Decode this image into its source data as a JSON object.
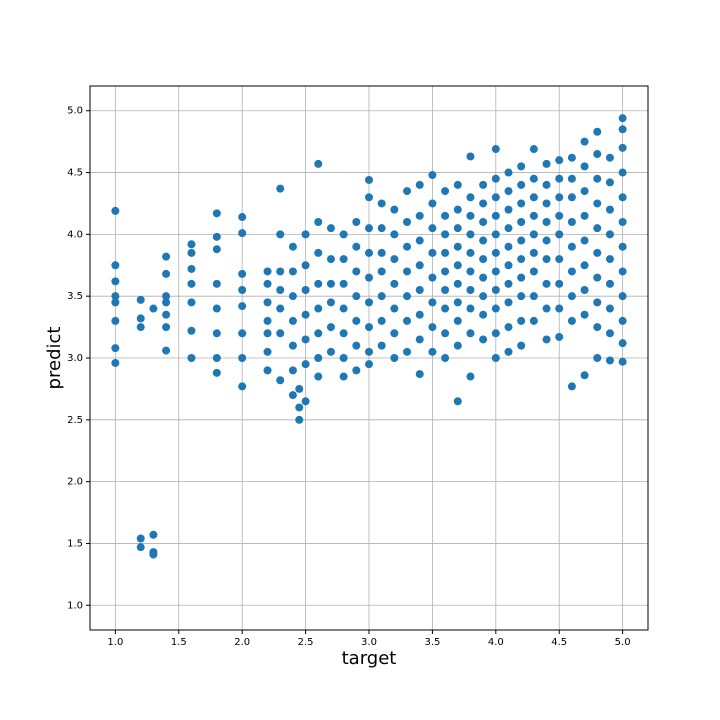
{
  "chart_data": {
    "type": "scatter",
    "xlabel": "target",
    "ylabel": "predict",
    "color": "#1f77b4",
    "grid": true,
    "xlim": [
      0.8,
      5.2
    ],
    "ylim": [
      0.8,
      5.2
    ],
    "xticks": [
      {
        "value": 1,
        "label": "1.0"
      },
      1.5,
      {
        "value": 2,
        "label": "2.0"
      },
      2.5,
      {
        "value": 3,
        "label": "3.0"
      },
      3.5,
      {
        "value": 4,
        "label": "4.0"
      },
      4.5,
      {
        "value": 5,
        "label": "5.0"
      }
    ],
    "yticks": [
      {
        "value": 1,
        "label": "1.0"
      },
      1.5,
      {
        "value": 2,
        "label": "2.0"
      },
      2.5,
      {
        "value": 3,
        "label": "3.0"
      },
      3.5,
      {
        "value": 4,
        "label": "4.0"
      },
      4.5,
      {
        "value": 5,
        "label": "5.0"
      }
    ],
    "x": [
      1,
      1,
      1,
      1,
      1,
      1,
      1,
      1,
      1.2,
      1.2,
      1.2,
      1.2,
      1.2,
      1.3,
      1.3,
      1.3,
      1.3,
      1.4,
      1.4,
      1.4,
      1.4,
      1.4,
      1.4,
      1.4,
      1.6,
      1.6,
      1.6,
      1.6,
      1.6,
      1.6,
      1.6,
      1.8,
      1.8,
      1.8,
      1.8,
      1.8,
      1.8,
      1.8,
      1.8,
      2,
      2,
      2,
      2,
      2,
      2,
      2,
      2,
      2.2,
      2.2,
      2.2,
      2.2,
      2.2,
      2.2,
      2.2,
      2.3,
      2.3,
      2.3,
      2.3,
      2.3,
      2.3,
      2.3,
      2.4,
      2.4,
      2.4,
      2.4,
      2.4,
      2.4,
      2.4,
      2.45,
      2.45,
      2.45,
      2.5,
      2.5,
      2.5,
      2.5,
      2.5,
      2.5,
      2.5,
      2.6,
      2.6,
      2.6,
      2.6,
      2.6,
      2.6,
      2.6,
      2.6,
      2.7,
      2.7,
      2.7,
      2.7,
      2.7,
      2.7,
      2.8,
      2.8,
      2.8,
      2.8,
      2.8,
      2.8,
      2.8,
      2.9,
      2.9,
      2.9,
      2.9,
      2.9,
      2.9,
      2.9,
      3,
      3,
      3,
      3,
      3,
      3,
      3,
      3,
      3,
      3.1,
      3.1,
      3.1,
      3.1,
      3.1,
      3.1,
      3.1,
      3.2,
      3.2,
      3.2,
      3.2,
      3.2,
      3.2,
      3.2,
      3.3,
      3.3,
      3.3,
      3.3,
      3.3,
      3.3,
      3.3,
      3.4,
      3.4,
      3.4,
      3.4,
      3.4,
      3.4,
      3.4,
      3.4,
      3.5,
      3.5,
      3.5,
      3.5,
      3.5,
      3.5,
      3.5,
      3.5,
      3.6,
      3.6,
      3.6,
      3.6,
      3.6,
      3.6,
      3.6,
      3.6,
      3.6,
      3.7,
      3.7,
      3.7,
      3.7,
      3.7,
      3.7,
      3.7,
      3.7,
      3.7,
      3.7,
      3.8,
      3.8,
      3.8,
      3.8,
      3.8,
      3.8,
      3.8,
      3.8,
      3.8,
      3.8,
      3.9,
      3.9,
      3.9,
      3.9,
      3.9,
      3.9,
      3.9,
      3.9,
      3.9,
      4,
      4,
      4,
      4,
      4,
      4,
      4,
      4,
      4,
      4,
      4,
      4.1,
      4.1,
      4.1,
      4.1,
      4.1,
      4.1,
      4.1,
      4.1,
      4.1,
      4.1,
      4.2,
      4.2,
      4.2,
      4.2,
      4.2,
      4.2,
      4.2,
      4.2,
      4.2,
      4.2,
      4.3,
      4.3,
      4.3,
      4.3,
      4.3,
      4.3,
      4.3,
      4.3,
      4.3,
      4.4,
      4.4,
      4.4,
      4.4,
      4.4,
      4.4,
      4.4,
      4.4,
      4.4,
      4.5,
      4.5,
      4.5,
      4.5,
      4.5,
      4.5,
      4.5,
      4.5,
      4.5,
      4.6,
      4.6,
      4.6,
      4.6,
      4.6,
      4.6,
      4.6,
      4.6,
      4.6,
      4.7,
      4.7,
      4.7,
      4.7,
      4.7,
      4.7,
      4.7,
      4.7,
      4.7,
      4.8,
      4.8,
      4.8,
      4.8,
      4.8,
      4.8,
      4.8,
      4.8,
      4.8,
      4.8,
      4.9,
      4.9,
      4.9,
      4.9,
      4.9,
      4.9,
      4.9,
      4.9,
      4.9,
      5,
      5,
      5,
      5,
      5,
      5,
      5,
      5,
      5,
      5,
      5,
      5
    ],
    "values": [
      4.19,
      3.75,
      3.62,
      3.5,
      3.45,
      3.3,
      3.08,
      2.96,
      3.47,
      3.32,
      3.25,
      1.54,
      1.47,
      3.4,
      1.57,
      1.43,
      1.41,
      3.82,
      3.68,
      3.5,
      3.45,
      3.35,
      3.25,
      3.06,
      3.92,
      3.85,
      3.72,
      3.6,
      3.45,
      3.22,
      3.0,
      4.17,
      3.98,
      3.88,
      3.6,
      3.4,
      3.2,
      3.0,
      2.88,
      4.14,
      4.01,
      3.68,
      3.55,
      3.42,
      3.2,
      3.0,
      2.77,
      3.7,
      3.6,
      3.45,
      3.3,
      3.2,
      3.05,
      2.9,
      4.37,
      4.0,
      3.7,
      3.55,
      3.4,
      3.2,
      2.82,
      3.9,
      3.7,
      3.5,
      3.3,
      3.1,
      2.9,
      2.7,
      2.75,
      2.6,
      2.5,
      4.0,
      3.75,
      3.55,
      3.35,
      3.15,
      2.95,
      2.65,
      4.57,
      4.1,
      3.85,
      3.6,
      3.4,
      3.2,
      3.0,
      2.85,
      4.05,
      3.8,
      3.6,
      3.45,
      3.25,
      3.05,
      4.0,
      3.8,
      3.6,
      3.4,
      3.2,
      3.0,
      2.85,
      4.1,
      3.9,
      3.7,
      3.5,
      3.3,
      3.1,
      2.9,
      4.44,
      4.3,
      4.05,
      3.85,
      3.65,
      3.45,
      3.25,
      3.05,
      2.95,
      4.25,
      4.05,
      3.85,
      3.7,
      3.5,
      3.3,
      3.1,
      4.2,
      4.0,
      3.8,
      3.6,
      3.4,
      3.2,
      3.0,
      4.35,
      4.1,
      3.9,
      3.7,
      3.5,
      3.3,
      3.05,
      4.4,
      4.15,
      3.95,
      3.75,
      3.55,
      3.35,
      3.15,
      2.87,
      4.48,
      4.25,
      4.05,
      3.85,
      3.65,
      3.45,
      3.25,
      3.05,
      4.35,
      4.15,
      4.0,
      3.85,
      3.7,
      3.55,
      3.4,
      3.2,
      3.0,
      4.4,
      4.2,
      4.05,
      3.9,
      3.75,
      3.6,
      3.45,
      3.3,
      3.1,
      2.65,
      4.63,
      4.3,
      4.15,
      4.0,
      3.85,
      3.7,
      3.55,
      3.4,
      3.2,
      2.85,
      4.4,
      4.25,
      4.1,
      3.95,
      3.8,
      3.65,
      3.5,
      3.35,
      3.15,
      4.69,
      4.45,
      4.3,
      4.15,
      4.0,
      3.85,
      3.7,
      3.55,
      3.4,
      3.2,
      3.0,
      4.5,
      4.35,
      4.2,
      4.05,
      3.9,
      3.75,
      3.6,
      3.45,
      3.25,
      3.05,
      4.55,
      4.4,
      4.25,
      4.1,
      3.95,
      3.8,
      3.65,
      3.5,
      3.3,
      3.1,
      4.69,
      4.45,
      4.3,
      4.15,
      4.0,
      3.85,
      3.7,
      3.5,
      3.3,
      4.57,
      4.4,
      4.25,
      4.1,
      3.95,
      3.8,
      3.6,
      3.4,
      3.15,
      4.6,
      4.45,
      4.3,
      4.15,
      4.0,
      3.8,
      3.6,
      3.4,
      3.17,
      4.62,
      4.45,
      4.3,
      4.1,
      3.9,
      3.7,
      3.5,
      3.3,
      2.77,
      4.75,
      4.55,
      4.35,
      4.15,
      3.95,
      3.75,
      3.55,
      3.35,
      2.86,
      4.83,
      4.65,
      4.45,
      4.25,
      4.05,
      3.85,
      3.65,
      3.45,
      3.25,
      3.0,
      4.62,
      4.42,
      4.2,
      4.0,
      3.8,
      3.6,
      3.4,
      3.2,
      2.98,
      4.94,
      4.85,
      4.7,
      4.5,
      4.3,
      4.1,
      3.9,
      3.7,
      3.5,
      3.3,
      3.12,
      2.97
    ]
  }
}
